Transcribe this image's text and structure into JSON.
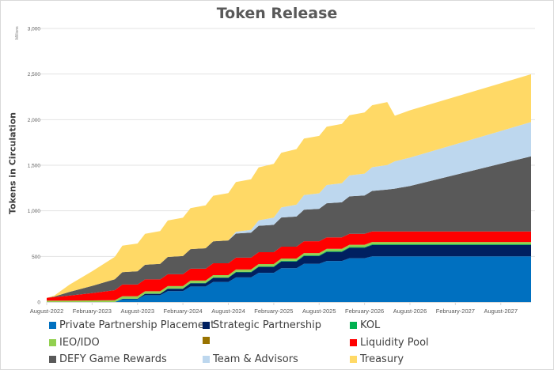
{
  "chart_data": {
    "type": "area",
    "stacked": true,
    "title": "Token Release",
    "xlabel": "",
    "ylabel": "Tokens in Circulation",
    "y_units": "Millions",
    "ylim": [
      0,
      3000
    ],
    "yticks": [
      0,
      500,
      1000,
      1500,
      2000,
      2500,
      3000
    ],
    "ytick_labels": [
      "0",
      "500",
      "1,000",
      "1,500",
      "2,000",
      "2,500",
      "3,000"
    ],
    "x_range_months": [
      0,
      64
    ],
    "xtick_months": [
      0,
      6,
      12,
      18,
      24,
      30,
      36,
      42,
      48,
      54,
      60
    ],
    "xtick_labels": [
      "August-2022",
      "February-2023",
      "August-2023",
      "February-2024",
      "August-2024",
      "February-2025",
      "August-2025",
      "February-2026",
      "August-2026",
      "February-2027",
      "August-2027"
    ],
    "grid": true,
    "legend_position": "bottom",
    "x_months": [
      0,
      1,
      3,
      6,
      9,
      10,
      12,
      13,
      15,
      16,
      18,
      19,
      21,
      22,
      24,
      25,
      27,
      28,
      30,
      31,
      33,
      34,
      36,
      37,
      39,
      40,
      42,
      43,
      45,
      46,
      48,
      64
    ],
    "series": [
      {
        "name": "Private Partnership Placement",
        "color": "#0070C0",
        "values": [
          0,
          0,
          0,
          0,
          0,
          30,
          30,
          75,
          75,
          120,
          120,
          170,
          170,
          220,
          220,
          270,
          270,
          320,
          320,
          370,
          370,
          420,
          420,
          450,
          450,
          480,
          480,
          500,
          500,
          500,
          500,
          500
        ]
      },
      {
        "name": "Strategic Partnership",
        "color": "#002060",
        "values": [
          0,
          0,
          0,
          0,
          0,
          5,
          5,
          15,
          15,
          25,
          25,
          35,
          35,
          45,
          45,
          55,
          55,
          65,
          65,
          75,
          75,
          85,
          85,
          100,
          100,
          115,
          115,
          125,
          125,
          125,
          125,
          125
        ]
      },
      {
        "name": "KOL",
        "color": "#00B050",
        "values": [
          0,
          0,
          0,
          0,
          0,
          2,
          2,
          3,
          3,
          4,
          4,
          5,
          5,
          5,
          5,
          6,
          6,
          6,
          6,
          7,
          7,
          7,
          7,
          8,
          8,
          8,
          8,
          8,
          8,
          8,
          8,
          8
        ]
      },
      {
        "name": "IEO/IDO",
        "color": "#92D050",
        "values": [
          15,
          15,
          15,
          17,
          20,
          25,
          25,
          25,
          25,
          25,
          25,
          25,
          25,
          25,
          25,
          25,
          25,
          25,
          25,
          25,
          25,
          25,
          25,
          25,
          25,
          25,
          25,
          25,
          25,
          25,
          25,
          25
        ]
      },
      {
        "name": "",
        "color": "#997300",
        "values": [
          0,
          0,
          0,
          0,
          0,
          0,
          0,
          0,
          0,
          0,
          0,
          0,
          0,
          0,
          0,
          0,
          0,
          0,
          0,
          0,
          0,
          0,
          0,
          0,
          0,
          0,
          0,
          0,
          0,
          0,
          0,
          0
        ]
      },
      {
        "name": "Liquidity Pool",
        "color": "#FF0000",
        "values": [
          30,
          40,
          55,
          80,
          110,
          130,
          130,
          130,
          130,
          130,
          130,
          130,
          130,
          130,
          130,
          130,
          130,
          130,
          130,
          130,
          130,
          130,
          130,
          125,
          125,
          120,
          120,
          115,
          115,
          115,
          115,
          115
        ]
      },
      {
        "name": "DEFY Game Rewards",
        "color": "#595959",
        "values": [
          0,
          5,
          40,
          80,
          120,
          135,
          145,
          160,
          170,
          190,
          200,
          215,
          225,
          240,
          250,
          265,
          275,
          290,
          300,
          320,
          330,
          345,
          355,
          375,
          385,
          410,
          420,
          445,
          460,
          470,
          500,
          825
        ]
      },
      {
        "name": "Team & Advisors",
        "color": "#BDD7EE",
        "values": [
          0,
          0,
          0,
          0,
          0,
          0,
          0,
          0,
          0,
          0,
          0,
          0,
          0,
          0,
          0,
          20,
          30,
          60,
          80,
          110,
          130,
          160,
          170,
          200,
          210,
          230,
          240,
          260,
          270,
          300,
          310,
          375
        ]
      },
      {
        "name": "Treasury",
        "color": "#FFD966",
        "values": [
          0,
          10,
          80,
          160,
          245,
          290,
          305,
          340,
          360,
          400,
          420,
          450,
          470,
          500,
          520,
          545,
          555,
          580,
          590,
          600,
          610,
          620,
          630,
          640,
          650,
          660,
          670,
          680,
          690,
          500,
          520,
          525
        ]
      }
    ]
  },
  "legend": {
    "items": [
      {
        "label": "Private Partnership Placement",
        "color": "#0070C0"
      },
      {
        "label": "Strategic Partnership",
        "color": "#002060"
      },
      {
        "label": "KOL",
        "color": "#00B050"
      },
      {
        "label": "IEO/IDO",
        "color": "#92D050"
      },
      {
        "label": "",
        "color": "#997300"
      },
      {
        "label": "Liquidity Pool",
        "color": "#FF0000"
      },
      {
        "label": "DEFY Game Rewards",
        "color": "#595959"
      },
      {
        "label": "Team & Advisors",
        "color": "#BDD7EE"
      },
      {
        "label": "Treasury",
        "color": "#FFD966"
      }
    ]
  }
}
